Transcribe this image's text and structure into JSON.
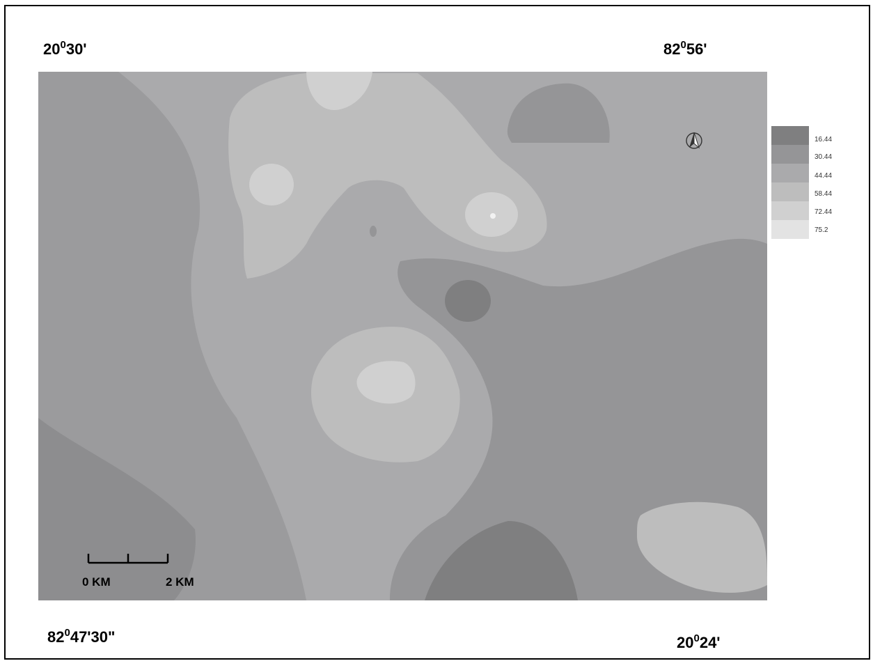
{
  "coordinates": {
    "top_left": {
      "deg": "20",
      "rest": "30'"
    },
    "top_right": {
      "deg": "82",
      "rest": "56'"
    },
    "bottom_left": {
      "deg": "82",
      "rest": "47'30\""
    },
    "bottom_right": {
      "deg": "20",
      "rest": "24'"
    }
  },
  "legend": {
    "items": [
      {
        "label": "16.44",
        "color": "#7f7f80"
      },
      {
        "label": "30.44",
        "color": "#959597"
      },
      {
        "label": "44.44",
        "color": "#aaaaac"
      },
      {
        "label": "58.44",
        "color": "#bdbdbd"
      },
      {
        "label": "72.44",
        "color": "#d0d0d0"
      },
      {
        "label": "75.2",
        "color": "#e3e3e3"
      }
    ]
  },
  "scale_bar": {
    "start_label": "0 KM",
    "end_label": "2 KM"
  },
  "icons": {
    "north_arrow": "north-arrow-icon"
  }
}
